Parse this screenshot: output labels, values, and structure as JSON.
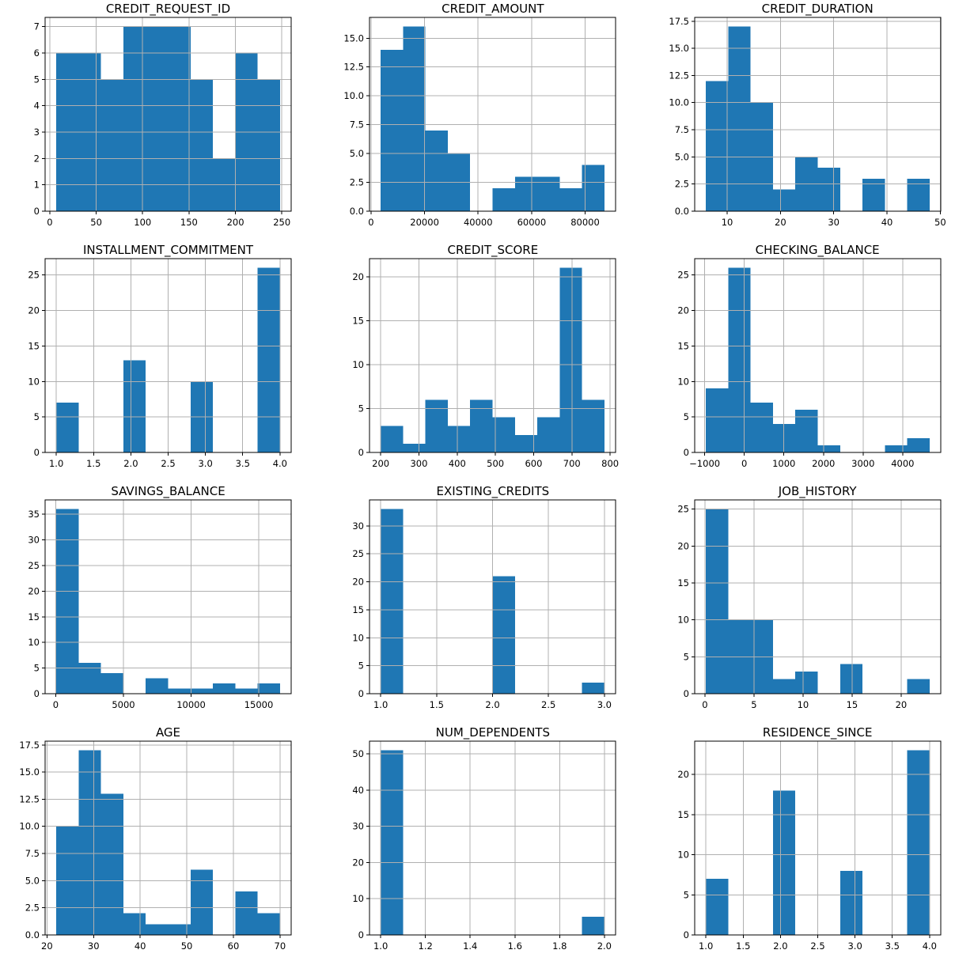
{
  "figure": {
    "background": "#ffffff",
    "bar_color": "#1f77b4",
    "grid_color": "#b0b0b0",
    "spine_color": "#000000",
    "rows": 4,
    "cols": 3
  },
  "chart_data": [
    {
      "type": "bar",
      "subtype": "histogram",
      "title": "CREDIT_REQUEST_ID",
      "bin_edges": [
        7,
        31.1,
        55.2,
        79.3,
        103.4,
        127.5,
        151.6,
        175.7,
        199.8,
        223.9,
        248
      ],
      "counts": [
        6,
        6,
        5,
        7,
        7,
        7,
        5,
        2,
        6,
        5
      ],
      "xlim": [
        -5.05,
        260.05
      ],
      "ylim": [
        0,
        7.35
      ],
      "xtick_vals": [
        0,
        50,
        100,
        150,
        200,
        250
      ],
      "xtick_labels": [
        "0",
        "50",
        "100",
        "150",
        "200",
        "250"
      ],
      "ytick_vals": [
        0,
        1,
        2,
        3,
        4,
        5,
        6,
        7
      ],
      "ytick_labels": [
        "0",
        "1",
        "2",
        "3",
        "4",
        "5",
        "6",
        "7"
      ],
      "grid": true,
      "legend": "none"
    },
    {
      "type": "bar",
      "subtype": "histogram",
      "title": "CREDIT_AMOUNT",
      "bin_edges": [
        3600,
        11960,
        20320,
        28680,
        37040,
        45400,
        53760,
        62120,
        70480,
        78840,
        87200
      ],
      "counts": [
        14,
        16,
        7,
        5,
        0,
        2,
        3,
        3,
        2,
        4
      ],
      "xlim": [
        -580,
        91380
      ],
      "ylim": [
        0,
        16.8
      ],
      "xtick_vals": [
        0,
        20000,
        40000,
        60000,
        80000
      ],
      "xtick_labels": [
        "0",
        "20000",
        "40000",
        "60000",
        "80000"
      ],
      "ytick_vals": [
        0,
        2.5,
        5,
        7.5,
        10,
        12.5,
        15
      ],
      "ytick_labels": [
        "0.0",
        "2.5",
        "5.0",
        "7.5",
        "10.0",
        "12.5",
        "15.0"
      ],
      "grid": true,
      "legend": "none"
    },
    {
      "type": "bar",
      "subtype": "histogram",
      "title": "CREDIT_DURATION",
      "bin_edges": [
        6,
        10.2,
        14.4,
        18.6,
        22.8,
        27,
        31.2,
        35.4,
        39.6,
        43.8,
        48
      ],
      "counts": [
        12,
        17,
        10,
        2,
        5,
        4,
        0,
        3,
        0,
        3
      ],
      "xlim": [
        3.9,
        50.1
      ],
      "ylim": [
        0,
        17.85
      ],
      "xtick_vals": [
        10,
        20,
        30,
        40,
        50
      ],
      "xtick_labels": [
        "10",
        "20",
        "30",
        "40",
        "50"
      ],
      "ytick_vals": [
        0,
        2.5,
        5,
        7.5,
        10,
        12.5,
        15,
        17.5
      ],
      "ytick_labels": [
        "0.0",
        "2.5",
        "5.0",
        "7.5",
        "10.0",
        "12.5",
        "15.0",
        "17.5"
      ],
      "grid": true,
      "legend": "none"
    },
    {
      "type": "bar",
      "subtype": "histogram",
      "title": "INSTALLMENT_COMMITMENT",
      "bin_edges": [
        1,
        1.3,
        1.6,
        1.9,
        2.2,
        2.5,
        2.8,
        3.1,
        3.4,
        3.7,
        4
      ],
      "counts": [
        7,
        0,
        0,
        13,
        0,
        0,
        10,
        0,
        0,
        26
      ],
      "xlim": [
        0.85,
        4.15
      ],
      "ylim": [
        0,
        27.3
      ],
      "xtick_vals": [
        1,
        1.5,
        2,
        2.5,
        3,
        3.5,
        4
      ],
      "xtick_labels": [
        "1.0",
        "1.5",
        "2.0",
        "2.5",
        "3.0",
        "3.5",
        "4.0"
      ],
      "ytick_vals": [
        0,
        5,
        10,
        15,
        20,
        25
      ],
      "ytick_labels": [
        "0",
        "5",
        "10",
        "15",
        "20",
        "25"
      ],
      "grid": true,
      "legend": "none"
    },
    {
      "type": "bar",
      "subtype": "histogram",
      "title": "CREDIT_SCORE",
      "bin_edges": [
        200,
        258.5,
        317,
        375.5,
        434,
        492.5,
        551,
        609.5,
        668,
        726.5,
        785
      ],
      "counts": [
        3,
        1,
        6,
        3,
        6,
        4,
        2,
        4,
        21,
        6
      ],
      "xlim": [
        170.75,
        814.25
      ],
      "ylim": [
        0,
        22.05
      ],
      "xtick_vals": [
        200,
        300,
        400,
        500,
        600,
        700,
        800
      ],
      "xtick_labels": [
        "200",
        "300",
        "400",
        "500",
        "600",
        "700",
        "800"
      ],
      "ytick_vals": [
        0,
        5,
        10,
        15,
        20
      ],
      "ytick_labels": [
        "0",
        "5",
        "10",
        "15",
        "20"
      ],
      "grid": true,
      "legend": "none"
    },
    {
      "type": "bar",
      "subtype": "histogram",
      "title": "CHECKING_BALANCE",
      "bin_edges": [
        -970,
        -405,
        160,
        725,
        1290,
        1855,
        2420,
        2985,
        3550,
        4115,
        4680
      ],
      "counts": [
        9,
        26,
        7,
        4,
        6,
        1,
        0,
        0,
        1,
        2
      ],
      "xlim": [
        -1252.5,
        4962.5
      ],
      "ylim": [
        0,
        27.3
      ],
      "xtick_vals": [
        -1000,
        0,
        1000,
        2000,
        3000,
        4000
      ],
      "xtick_labels": [
        "−1000",
        "0",
        "1000",
        "2000",
        "3000",
        "4000"
      ],
      "ytick_vals": [
        0,
        5,
        10,
        15,
        20,
        25
      ],
      "ytick_labels": [
        "0",
        "5",
        "10",
        "15",
        "20",
        "25"
      ],
      "grid": true,
      "legend": "none"
    },
    {
      "type": "bar",
      "subtype": "histogram",
      "title": "SAVINGS_BALANCE",
      "bin_edges": [
        40,
        1693,
        3346,
        4999,
        6652,
        8305,
        9958,
        11611,
        13264,
        14917,
        16570
      ],
      "counts": [
        36,
        6,
        4,
        0,
        3,
        1,
        1,
        2,
        1,
        2
      ],
      "xlim": [
        -786.5,
        17396.5
      ],
      "ylim": [
        0,
        37.8
      ],
      "xtick_vals": [
        0,
        5000,
        10000,
        15000
      ],
      "xtick_labels": [
        "0",
        "5000",
        "10000",
        "15000"
      ],
      "ytick_vals": [
        0,
        5,
        10,
        15,
        20,
        25,
        30,
        35
      ],
      "ytick_labels": [
        "0",
        "5",
        "10",
        "15",
        "20",
        "25",
        "30",
        "35"
      ],
      "grid": true,
      "legend": "none"
    },
    {
      "type": "bar",
      "subtype": "histogram",
      "title": "EXISTING_CREDITS",
      "bin_edges": [
        1,
        1.2,
        1.4,
        1.6,
        1.8,
        2,
        2.2,
        2.4,
        2.6,
        2.8,
        3
      ],
      "counts": [
        33,
        0,
        0,
        0,
        0,
        21,
        0,
        0,
        0,
        2
      ],
      "xlim": [
        0.9,
        3.1
      ],
      "ylim": [
        0,
        34.65
      ],
      "xtick_vals": [
        1,
        1.5,
        2,
        2.5,
        3
      ],
      "xtick_labels": [
        "1.0",
        "1.5",
        "2.0",
        "2.5",
        "3.0"
      ],
      "ytick_vals": [
        0,
        5,
        10,
        15,
        20,
        25,
        30
      ],
      "ytick_labels": [
        "0",
        "5",
        "10",
        "15",
        "20",
        "25",
        "30"
      ],
      "grid": true,
      "legend": "none"
    },
    {
      "type": "bar",
      "subtype": "histogram",
      "title": "JOB_HISTORY",
      "bin_edges": [
        0.1,
        2.38,
        4.66,
        6.94,
        9.22,
        11.5,
        13.78,
        16.06,
        18.34,
        20.62,
        22.9
      ],
      "counts": [
        25,
        10,
        10,
        2,
        3,
        0,
        4,
        0,
        0,
        2
      ],
      "xlim": [
        -1.04,
        24.04
      ],
      "ylim": [
        0,
        26.25
      ],
      "xtick_vals": [
        0,
        5,
        10,
        15,
        20
      ],
      "xtick_labels": [
        "0",
        "5",
        "10",
        "15",
        "20"
      ],
      "ytick_vals": [
        0,
        5,
        10,
        15,
        20,
        25
      ],
      "ytick_labels": [
        "0",
        "5",
        "10",
        "15",
        "20",
        "25"
      ],
      "grid": true,
      "legend": "none"
    },
    {
      "type": "bar",
      "subtype": "histogram",
      "title": "AGE",
      "bin_edges": [
        22,
        26.8,
        31.6,
        36.4,
        41.2,
        46,
        50.8,
        55.6,
        60.4,
        65.2,
        70
      ],
      "counts": [
        10,
        17,
        13,
        2,
        1,
        1,
        6,
        0,
        4,
        2
      ],
      "xlim": [
        19.6,
        72.4
      ],
      "ylim": [
        0,
        17.85
      ],
      "xtick_vals": [
        20,
        30,
        40,
        50,
        60,
        70
      ],
      "xtick_labels": [
        "20",
        "30",
        "40",
        "50",
        "60",
        "70"
      ],
      "ytick_vals": [
        0,
        2.5,
        5,
        7.5,
        10,
        12.5,
        15,
        17.5
      ],
      "ytick_labels": [
        "0.0",
        "2.5",
        "5.0",
        "7.5",
        "10.0",
        "12.5",
        "15.0",
        "17.5"
      ],
      "grid": true,
      "legend": "none"
    },
    {
      "type": "bar",
      "subtype": "histogram",
      "title": "NUM_DEPENDENTS",
      "bin_edges": [
        1,
        1.1,
        1.2,
        1.3,
        1.4,
        1.5,
        1.6,
        1.7,
        1.8,
        1.9,
        2
      ],
      "counts": [
        51,
        0,
        0,
        0,
        0,
        0,
        0,
        0,
        0,
        5
      ],
      "xlim": [
        0.95,
        2.05
      ],
      "ylim": [
        0,
        53.55
      ],
      "xtick_vals": [
        1,
        1.2,
        1.4,
        1.6,
        1.8,
        2
      ],
      "xtick_labels": [
        "1.0",
        "1.2",
        "1.4",
        "1.6",
        "1.8",
        "2.0"
      ],
      "ytick_vals": [
        0,
        10,
        20,
        30,
        40,
        50
      ],
      "ytick_labels": [
        "0",
        "10",
        "20",
        "30",
        "40",
        "50"
      ],
      "grid": true,
      "legend": "none"
    },
    {
      "type": "bar",
      "subtype": "histogram",
      "title": "RESIDENCE_SINCE",
      "bin_edges": [
        1,
        1.3,
        1.6,
        1.9,
        2.2,
        2.5,
        2.8,
        3.1,
        3.4,
        3.7,
        4
      ],
      "counts": [
        7,
        0,
        0,
        18,
        0,
        0,
        8,
        0,
        0,
        23
      ],
      "xlim": [
        0.85,
        4.15
      ],
      "ylim": [
        0,
        24.15
      ],
      "xtick_vals": [
        1,
        1.5,
        2,
        2.5,
        3,
        3.5,
        4
      ],
      "xtick_labels": [
        "1.0",
        "1.5",
        "2.0",
        "2.5",
        "3.0",
        "3.5",
        "4.0"
      ],
      "ytick_vals": [
        0,
        5,
        10,
        15,
        20
      ],
      "ytick_labels": [
        "0",
        "5",
        "10",
        "15",
        "20"
      ],
      "grid": true,
      "legend": "none"
    }
  ]
}
